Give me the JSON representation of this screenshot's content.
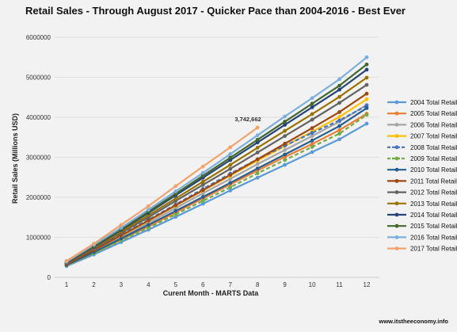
{
  "chart_data": {
    "type": "line",
    "title": "Retail Sales - Through August 2017 - Quicker Pace than 2004-2016 - Best Ever",
    "xlabel": "Curent Month - MARTS Data",
    "ylabel": "Retail Sales (Millions USD)",
    "x": [
      1,
      2,
      3,
      4,
      5,
      6,
      7,
      8,
      9,
      10,
      11,
      12
    ],
    "x_ticks": [
      "1",
      "2",
      "3",
      "4",
      "5",
      "6",
      "7",
      "8",
      "9",
      "10",
      "11",
      "12"
    ],
    "ylim": [
      0,
      6000000
    ],
    "y_ticks": [
      "0",
      "1000000",
      "2000000",
      "3000000",
      "4000000",
      "5000000",
      "6000000"
    ],
    "grid": true,
    "legend_position": "right",
    "annotation": "3,742,662",
    "source": "www.itstheeconomy.info",
    "series": [
      {
        "name": "2004 Total Retail",
        "color": "#5b9bd5",
        "dashed": false,
        "values": [
          280000,
          570000,
          880000,
          1190000,
          1510000,
          1840000,
          2170000,
          2490000,
          2810000,
          3130000,
          3450000,
          3840000
        ]
      },
      {
        "name": "2005 Total Retail",
        "color": "#ed7d31",
        "dashed": false,
        "values": [
          300000,
          610000,
          940000,
          1270000,
          1620000,
          1970000,
          2320000,
          2670000,
          3010000,
          3330000,
          3680000,
          4090000
        ]
      },
      {
        "name": "2006 Total Retail",
        "color": "#a5a5a5",
        "dashed": false,
        "values": [
          320000,
          660000,
          1010000,
          1360000,
          1730000,
          2100000,
          2460000,
          2830000,
          3180000,
          3530000,
          3890000,
          4310000
        ]
      },
      {
        "name": "2007 Total Retail",
        "color": "#ffc000",
        "dashed": false,
        "values": [
          330000,
          680000,
          1040000,
          1410000,
          1790000,
          2170000,
          2540000,
          2920000,
          3280000,
          3640000,
          4010000,
          4450000
        ]
      },
      {
        "name": "2008 Total Retail",
        "color": "#4472c4",
        "dashed": true,
        "values": [
          340000,
          700000,
          1070000,
          1440000,
          1820000,
          2210000,
          2590000,
          2950000,
          3290000,
          3610000,
          3920000,
          4290000
        ]
      },
      {
        "name": "2009 Total Retail",
        "color": "#70ad47",
        "dashed": true,
        "values": [
          300000,
          600000,
          920000,
          1240000,
          1570000,
          1910000,
          2250000,
          2600000,
          2930000,
          3260000,
          3590000,
          4060000
        ]
      },
      {
        "name": "2010 Total Retail",
        "color": "#255e91",
        "dashed": false,
        "values": [
          310000,
          630000,
          970000,
          1310000,
          1660000,
          2010000,
          2360000,
          2720000,
          3070000,
          3420000,
          3780000,
          4230000
        ]
      },
      {
        "name": "2011 Total Retail",
        "color": "#9e480e",
        "dashed": false,
        "values": [
          330000,
          680000,
          1050000,
          1420000,
          1800000,
          2180000,
          2560000,
          2950000,
          3340000,
          3730000,
          4130000,
          4590000
        ]
      },
      {
        "name": "2012 Total Retail",
        "color": "#636363",
        "dashed": false,
        "values": [
          350000,
          720000,
          1110000,
          1500000,
          1910000,
          2310000,
          2710000,
          3120000,
          3530000,
          3940000,
          4360000,
          4810000
        ]
      },
      {
        "name": "2013 Total Retail",
        "color": "#997300",
        "dashed": false,
        "values": [
          360000,
          740000,
          1140000,
          1550000,
          1970000,
          2390000,
          2810000,
          3240000,
          3660000,
          4080000,
          4510000,
          4990000
        ]
      },
      {
        "name": "2014 Total Retail",
        "color": "#264478",
        "dashed": false,
        "values": [
          370000,
          760000,
          1180000,
          1610000,
          2050000,
          2490000,
          2930000,
          3370000,
          3810000,
          4250000,
          4690000,
          5190000
        ]
      },
      {
        "name": "2015 Total Retail",
        "color": "#43682b",
        "dashed": false,
        "values": [
          380000,
          780000,
          1200000,
          1640000,
          2090000,
          2540000,
          2990000,
          3440000,
          3890000,
          4340000,
          4790000,
          5320000
        ]
      },
      {
        "name": "2016 Total Retail",
        "color": "#7cafdd",
        "dashed": false,
        "values": [
          390000,
          810000,
          1240000,
          1690000,
          2150000,
          2610000,
          3080000,
          3550000,
          4020000,
          4480000,
          4950000,
          5500000
        ]
      },
      {
        "name": "2017 Total Retail",
        "color": "#f4a26b",
        "dashed": false,
        "values": [
          410000,
          840000,
          1310000,
          1780000,
          2280000,
          2770000,
          3250000,
          3742662,
          null,
          null,
          null,
          null
        ]
      }
    ]
  }
}
